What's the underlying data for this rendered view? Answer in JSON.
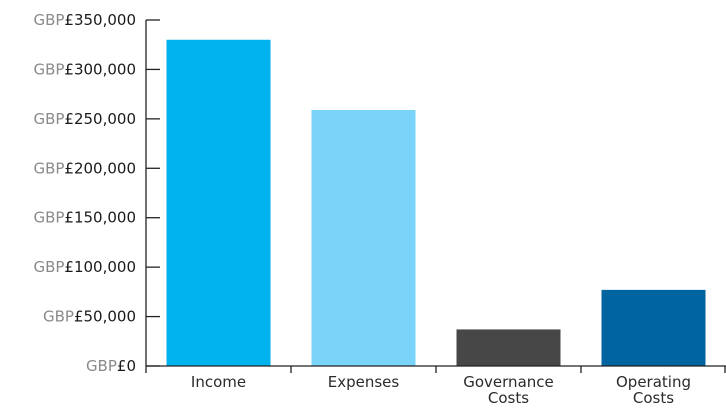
{
  "chart_data": {
    "type": "bar",
    "categories": [
      "Income",
      "Expenses",
      "Governance\nCosts",
      "Operating\nCosts"
    ],
    "values": [
      330000,
      259000,
      37000,
      77000
    ],
    "bar_colors": [
      "#00b2ee",
      "#7ad3f8",
      "#474747",
      "#0064a0"
    ],
    "ylim": [
      0,
      350000
    ],
    "yticks": [
      0,
      50000,
      100000,
      150000,
      200000,
      250000,
      300000,
      350000
    ],
    "ytick_labels": [
      {
        "prefix": "GBP",
        "value": "£0"
      },
      {
        "prefix": "GBP",
        "value": "£50,000"
      },
      {
        "prefix": "GBP",
        "value": "£100,000"
      },
      {
        "prefix": "GBP",
        "value": "£150,000"
      },
      {
        "prefix": "GBP",
        "value": "£200,000"
      },
      {
        "prefix": "GBP",
        "value": "£250,000"
      },
      {
        "prefix": "GBP",
        "value": "£300,000"
      },
      {
        "prefix": "GBP",
        "value": "£350,000"
      }
    ],
    "grid": false,
    "title": "",
    "xlabel": "",
    "ylabel": ""
  }
}
